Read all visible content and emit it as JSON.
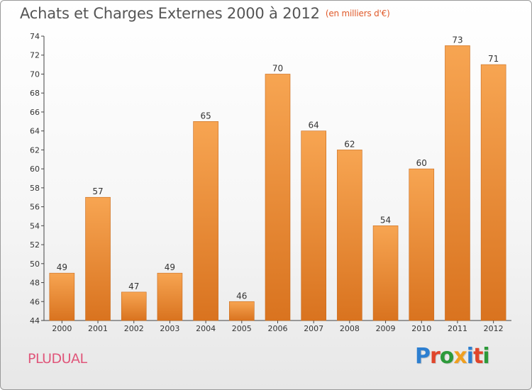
{
  "header": {
    "title": "Achats et Charges Externes 2000 à 2012",
    "subtitle": "(en milliers d'€)"
  },
  "commune": "PLUDUAL",
  "logo": {
    "text": "Proxiti",
    "letter_colors": [
      "#2d7fd0",
      "#e0452b",
      "#2d9a3a",
      "#f0a020",
      "#2d7fd0",
      "#e0452b",
      "#2d9a3a"
    ]
  },
  "colors": {
    "bar_light": "#f7a552",
    "bar_dark": "#d9731f",
    "bar_border": "#c86a1c",
    "axis": "#444444",
    "grid": "#d0d0d0"
  },
  "chart_data": {
    "type": "bar",
    "title": "Achats et Charges Externes 2000 à 2012",
    "categories": [
      "2000",
      "2001",
      "2002",
      "2003",
      "2004",
      "2005",
      "2006",
      "2007",
      "2008",
      "2009",
      "2010",
      "2011",
      "2012"
    ],
    "values": [
      49,
      57,
      47,
      49,
      65,
      46,
      70,
      64,
      62,
      54,
      60,
      73,
      71
    ],
    "ylim": [
      44,
      74
    ],
    "yticks": [
      44,
      46,
      48,
      50,
      52,
      54,
      56,
      58,
      60,
      62,
      64,
      66,
      68,
      70,
      72,
      74
    ],
    "xlabel": "",
    "ylabel": "",
    "grid": false,
    "data_labels": true
  }
}
